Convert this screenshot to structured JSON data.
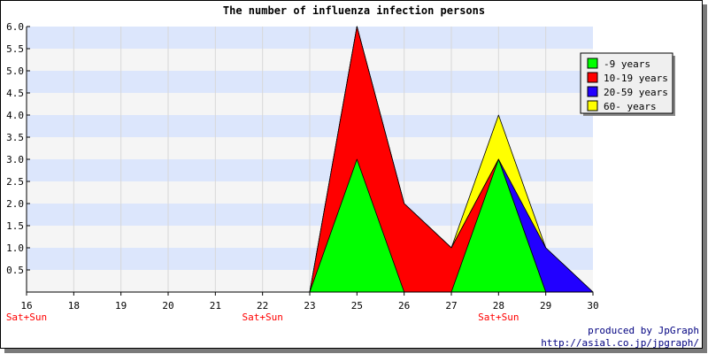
{
  "chart_data": {
    "type": "area",
    "title": "The number of influenza infection persons",
    "stacked": true,
    "ylim": [
      0,
      6
    ],
    "y_ticks": [
      "1.0",
      "1.5",
      "2.0",
      "2.5",
      "3.0",
      "3.5",
      "4.0",
      "4.5",
      "5.0",
      "5.5",
      "6.0"
    ],
    "y_tick_values": [
      1.0,
      1.5,
      2.0,
      2.5,
      3.0,
      3.5,
      4.0,
      4.5,
      5.0,
      5.5,
      6.0
    ],
    "y_tick_extra": [
      "0.5"
    ],
    "y_tick_extra_values": [
      0.5
    ],
    "categories": [
      "16",
      "18",
      "19",
      "20",
      "21",
      "22",
      "23",
      "25",
      "26",
      "27",
      "28",
      "29",
      "30"
    ],
    "weekend_labels": [
      {
        "category": "16",
        "text": "Sat+Sun"
      },
      {
        "category": "22",
        "text": "Sat+Sun"
      },
      {
        "category": "28",
        "text": "Sat+Sun"
      }
    ],
    "grid": true,
    "band_colors": [
      "#f5f5f5",
      "#dce6fc"
    ],
    "legend_position": "top-right",
    "series": [
      {
        "name": "-9 years",
        "color": "#00ff00",
        "values": [
          0,
          0,
          0,
          0,
          0,
          0,
          0,
          3,
          0,
          0,
          3,
          0,
          0
        ]
      },
      {
        "name": "10-19 years",
        "color": "#ff0000",
        "values": [
          0,
          0,
          0,
          0,
          0,
          0,
          0,
          3,
          2,
          1,
          0,
          0,
          0
        ]
      },
      {
        "name": "20-59 years",
        "color": "#2200ff",
        "values": [
          0,
          0,
          0,
          0,
          0,
          0,
          0,
          0,
          0,
          0,
          0,
          1,
          0
        ]
      },
      {
        "name": "60- years",
        "color": "#ffff00",
        "values": [
          0,
          0,
          0,
          0,
          0,
          0,
          0,
          0,
          0,
          0,
          1,
          0,
          0
        ]
      }
    ]
  },
  "credits": {
    "line1": "produced by JpGraph",
    "line2": "http://asial.co.jp/jpgraph/"
  }
}
